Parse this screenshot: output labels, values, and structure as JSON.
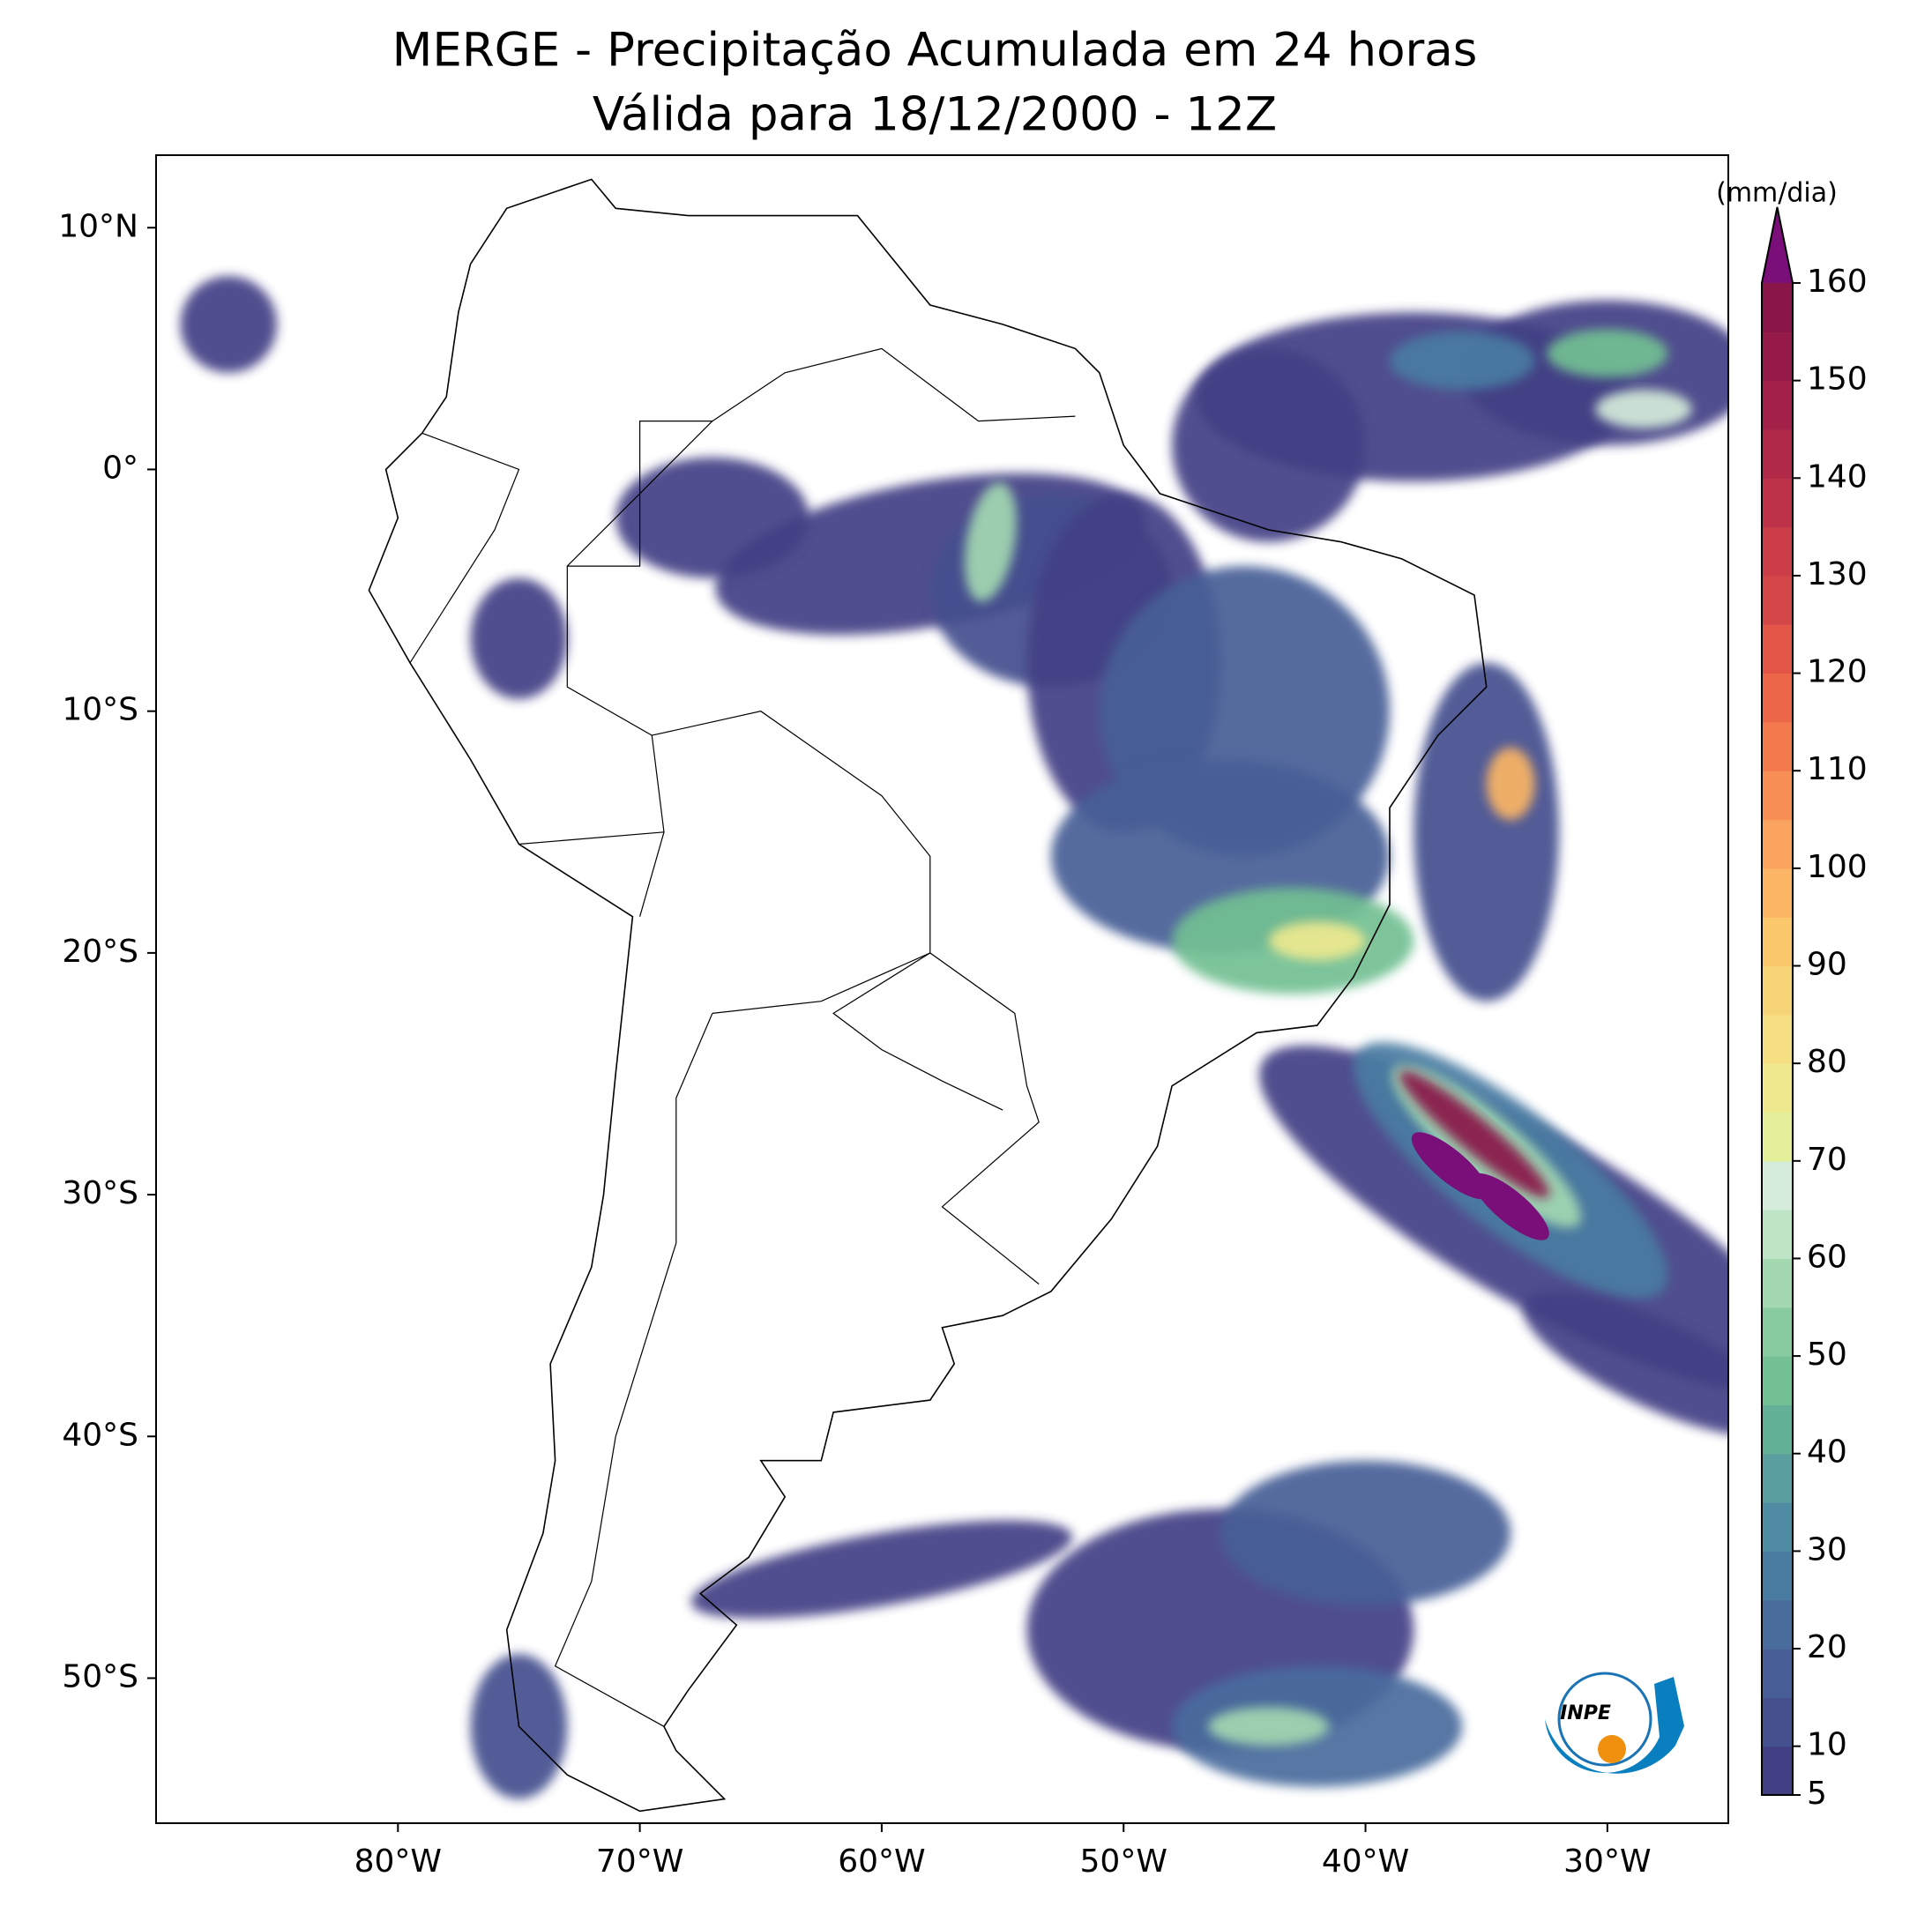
{
  "chart_data": {
    "type": "map",
    "title": "MERGE - Precipitação Acumulada em 24 horas",
    "subtitle": "Válida para 18/12/2000 - 12Z",
    "xlim": [
      -90,
      -25
    ],
    "ylim": [
      -56,
      13
    ],
    "xticks": [
      {
        "value": -80,
        "label": "80°W"
      },
      {
        "value": -70,
        "label": "70°W"
      },
      {
        "value": -60,
        "label": "60°W"
      },
      {
        "value": -50,
        "label": "50°W"
      },
      {
        "value": -40,
        "label": "40°W"
      },
      {
        "value": -30,
        "label": "30°W"
      }
    ],
    "yticks": [
      {
        "value": 10,
        "label": "10°N"
      },
      {
        "value": 0,
        "label": "0°"
      },
      {
        "value": -10,
        "label": "10°S"
      },
      {
        "value": -20,
        "label": "20°S"
      },
      {
        "value": -30,
        "label": "30°S"
      },
      {
        "value": -40,
        "label": "40°S"
      },
      {
        "value": -50,
        "label": "50°S"
      }
    ],
    "colorbar": {
      "label": "(mm/dia)",
      "range": [
        5,
        160
      ],
      "step": 5,
      "ticks": [
        5,
        10,
        20,
        30,
        40,
        50,
        60,
        70,
        80,
        90,
        100,
        110,
        120,
        130,
        140,
        150,
        160
      ],
      "colors": [
        "#423f85",
        "#45508e",
        "#475e96",
        "#496c9d",
        "#4a7ca2",
        "#4f8ca4",
        "#5a9ea0",
        "#62b096",
        "#72c093",
        "#88cb9f",
        "#a3d8b1",
        "#bde4c4",
        "#d5ecda",
        "#e4ef9a",
        "#eee98f",
        "#f5df82",
        "#f8d478",
        "#fac76c",
        "#fbb565",
        "#f9a35e",
        "#f78f55",
        "#f27a4d",
        "#ec6748",
        "#e25547",
        "#d44748",
        "#c93c48",
        "#bd3248",
        "#b02947",
        "#a32148",
        "#961a49",
        "#8a1548"
      ],
      "extend_color": "#7a0f7a"
    },
    "logo_text": "INPE"
  }
}
